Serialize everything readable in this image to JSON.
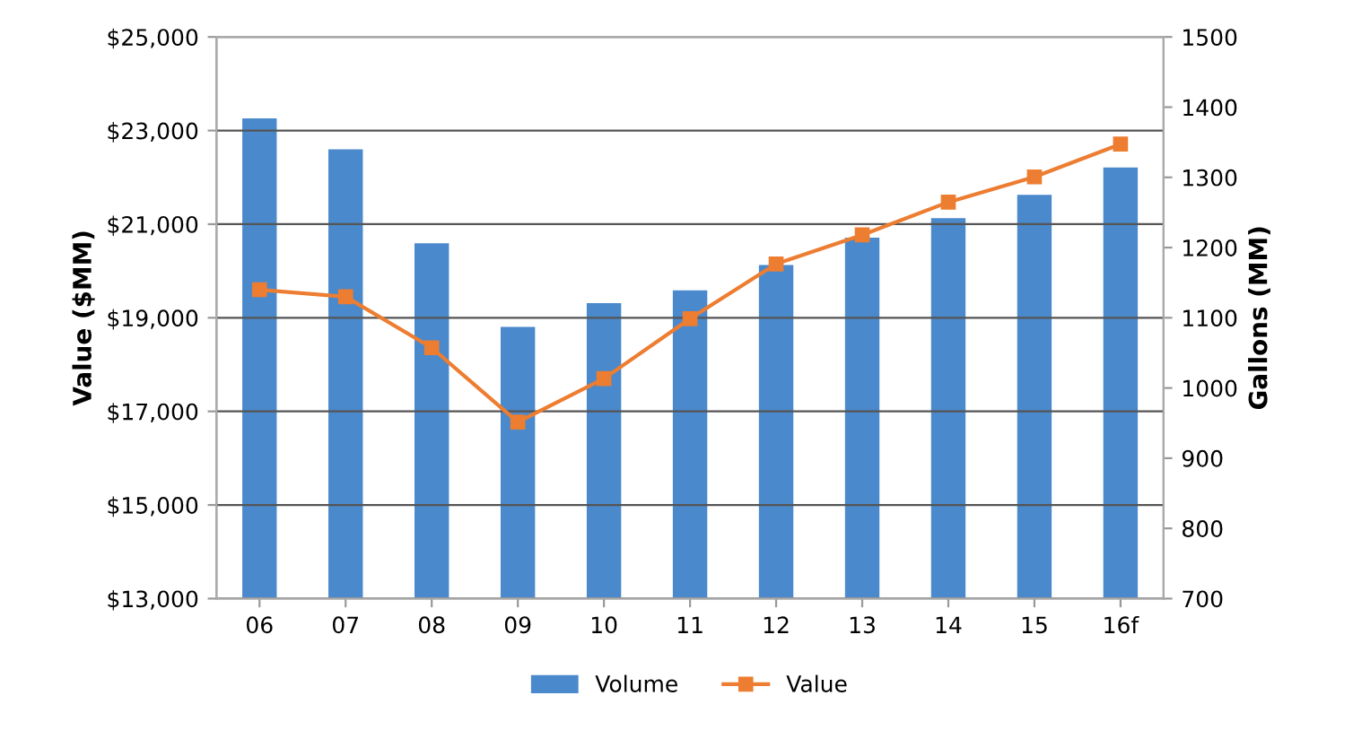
{
  "chart_data": {
    "type": "bar",
    "categories": [
      "06",
      "07",
      "08",
      "09",
      "10",
      "11",
      "12",
      "13",
      "14",
      "15",
      "16f"
    ],
    "ylabel": "Value ($MM)",
    "y2label": "Gallons (MM)",
    "series": [
      {
        "name": "Volume",
        "axis": "y2",
        "color": "#4a89cc",
        "values": [
          1384,
          1340,
          1206,
          1087,
          1121,
          1139,
          1175,
          1214,
          1242,
          1275,
          1314
        ]
      },
      {
        "name": "Value",
        "type": "line",
        "axis": "y",
        "color": "#ed7d31",
        "marker": "square",
        "values": [
          19600,
          19450,
          18360,
          16770,
          17700,
          18980,
          20150,
          20770,
          21470,
          22010,
          22710
        ]
      }
    ],
    "ylim": [
      13000,
      25000
    ],
    "yticks": [
      {
        "value": 13000,
        "label": "$13,000"
      },
      {
        "value": 15000,
        "label": "$15,000"
      },
      {
        "value": 17000,
        "label": "$17,000"
      },
      {
        "value": 19000,
        "label": "$19,000"
      },
      {
        "value": 21000,
        "label": "$21,000"
      },
      {
        "value": 23000,
        "label": "$23,000"
      },
      {
        "value": 25000,
        "label": "$25,000"
      }
    ],
    "y2lim": [
      700,
      1500
    ],
    "y2ticks": [
      700,
      800,
      900,
      1000,
      1100,
      1200,
      1300,
      1400,
      1500
    ],
    "grid": "y",
    "legend": "bottom"
  }
}
